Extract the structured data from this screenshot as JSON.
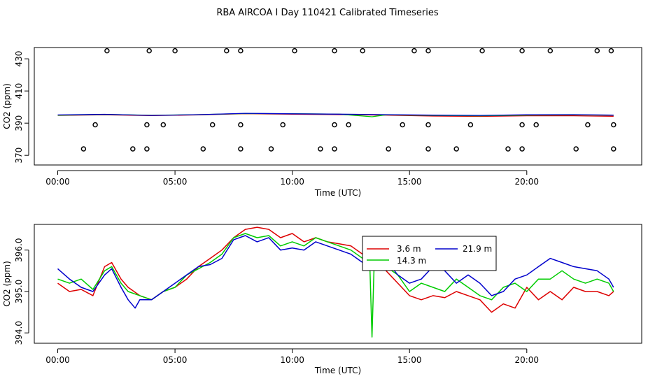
{
  "title": "RBA AIRCOA I  Day 110421  Calibrated Timeseries",
  "chart_data": [
    {
      "type": "line",
      "panel": "top",
      "xlabel": "Time (UTC)",
      "ylabel": "CO2 (ppm)",
      "xlim": [
        -1.0,
        24.9
      ],
      "ylim": [
        364,
        437
      ],
      "x_ticks": [
        0,
        5,
        10,
        15,
        20
      ],
      "x_tick_labels": [
        "00:00",
        "05:00",
        "10:00",
        "15:00",
        "20:00"
      ],
      "y_ticks": [
        370,
        390,
        410,
        430
      ],
      "y_tick_labels": [
        "370",
        "390",
        "410",
        "430"
      ],
      "colors": {
        "red": "#dd0000",
        "green": "#00cc00",
        "blue": "#0000cc"
      },
      "lines": [
        {
          "color": "red",
          "x": [
            0,
            2,
            4,
            6,
            8,
            10,
            12,
            14,
            16,
            18,
            20,
            22,
            23.7
          ],
          "y": [
            394.8,
            395.2,
            394.7,
            395.1,
            395.9,
            395.6,
            395.3,
            395.0,
            394.4,
            394.2,
            394.6,
            394.6,
            394.3
          ]
        },
        {
          "color": "green",
          "x": [
            0,
            2,
            4,
            6,
            8,
            10,
            12,
            13.4,
            14,
            16,
            18,
            20,
            22,
            23.7
          ],
          "y": [
            394.9,
            395.4,
            394.9,
            395.3,
            396.0,
            395.9,
            395.6,
            394.0,
            395.2,
            394.8,
            394.6,
            395.0,
            395.1,
            395.0
          ]
        },
        {
          "color": "blue",
          "x": [
            0,
            2,
            4,
            6,
            8,
            10,
            12,
            14,
            16,
            18,
            20,
            22,
            23.7
          ],
          "y": [
            395.1,
            395.5,
            394.8,
            395.3,
            396.1,
            395.8,
            395.6,
            395.3,
            395.0,
            394.8,
            395.2,
            395.3,
            395.0
          ]
        }
      ],
      "markers": {
        "high": {
          "y": 435,
          "x": [
            2.1,
            3.9,
            5.0,
            7.2,
            7.8,
            10.1,
            11.8,
            13.0,
            15.2,
            15.8,
            18.1,
            19.8,
            21.0,
            23.0,
            23.6
          ]
        },
        "mid": {
          "y": 389,
          "x": [
            1.6,
            3.8,
            4.5,
            6.6,
            7.8,
            9.6,
            11.8,
            12.4,
            14.7,
            15.8,
            17.6,
            19.8,
            20.4,
            22.6,
            23.7
          ]
        },
        "low": {
          "y": 374,
          "x": [
            1.1,
            3.2,
            3.8,
            6.2,
            7.8,
            9.1,
            11.2,
            11.8,
            14.1,
            15.8,
            17.0,
            19.2,
            19.8,
            22.1,
            23.7
          ]
        }
      }
    },
    {
      "type": "line",
      "panel": "bottom",
      "xlabel": "Time (UTC)",
      "ylabel": "CO2 (ppm)",
      "xlim": [
        -1.0,
        24.9
      ],
      "ylim": [
        393.75,
        396.62
      ],
      "x_ticks": [
        0,
        5,
        10,
        15,
        20
      ],
      "x_tick_labels": [
        "00:00",
        "05:00",
        "10:00",
        "15:00",
        "20:00"
      ],
      "y_ticks": [
        394.0,
        395.0,
        396.0
      ],
      "y_tick_labels": [
        "394.0",
        "395.0",
        "396.0"
      ],
      "legend": {
        "position": "top-right",
        "entries": [
          {
            "label": "3.6 m",
            "color": "red"
          },
          {
            "label": "21.9 m",
            "color": "blue"
          },
          {
            "label": "14.3 m",
            "color": "green"
          }
        ]
      },
      "series": [
        {
          "color": "red",
          "x": [
            0.0,
            0.5,
            1.0,
            1.5,
            2.0,
            2.3,
            2.7,
            3.0,
            3.5,
            4.0,
            4.5,
            5.0,
            5.5,
            6.0,
            6.5,
            7.0,
            7.5,
            8.0,
            8.5,
            9.0,
            9.5,
            10.0,
            10.5,
            11.0,
            11.5,
            12.0,
            12.5,
            13.0,
            13.5,
            14.0,
            14.5,
            15.0,
            15.5,
            16.0,
            16.5,
            17.0,
            17.5,
            18.0,
            18.5,
            19.0,
            19.5,
            20.0,
            20.5,
            21.0,
            21.5,
            22.0,
            22.5,
            23.0,
            23.5,
            23.7
          ],
          "y": [
            395.2,
            395.0,
            395.05,
            394.9,
            395.6,
            395.7,
            395.3,
            395.1,
            394.9,
            394.8,
            395.0,
            395.1,
            395.3,
            395.6,
            395.8,
            396.0,
            396.3,
            396.5,
            396.55,
            396.5,
            396.3,
            396.4,
            396.2,
            396.3,
            396.2,
            396.15,
            396.1,
            395.9,
            395.8,
            395.5,
            395.2,
            394.9,
            394.8,
            394.9,
            394.85,
            395.0,
            394.9,
            394.8,
            394.5,
            394.7,
            394.6,
            395.1,
            394.8,
            395.0,
            394.8,
            395.1,
            395.0,
            395.0,
            394.9,
            395.0
          ]
        },
        {
          "color": "green",
          "x": [
            0.0,
            0.5,
            1.0,
            1.5,
            2.0,
            2.3,
            2.7,
            3.0,
            3.5,
            4.0,
            4.5,
            5.0,
            5.5,
            6.0,
            6.5,
            7.0,
            7.5,
            8.0,
            8.5,
            9.0,
            9.5,
            10.0,
            10.5,
            11.0,
            11.5,
            12.0,
            12.5,
            13.0,
            13.3,
            13.4,
            13.5,
            14.0,
            14.5,
            15.0,
            15.5,
            16.0,
            16.5,
            17.0,
            17.5,
            18.0,
            18.5,
            19.0,
            19.5,
            20.0,
            20.5,
            21.0,
            21.5,
            22.0,
            22.5,
            23.0,
            23.5,
            23.7
          ],
          "y": [
            395.3,
            395.2,
            395.3,
            395.05,
            395.5,
            395.6,
            395.2,
            395.0,
            394.9,
            394.8,
            395.0,
            395.1,
            395.4,
            395.55,
            395.7,
            395.9,
            396.3,
            396.4,
            396.3,
            396.35,
            396.1,
            396.2,
            396.1,
            396.3,
            396.2,
            396.1,
            396.0,
            395.8,
            395.8,
            393.9,
            395.8,
            395.6,
            395.4,
            395.0,
            395.2,
            395.1,
            395.0,
            395.3,
            395.1,
            394.9,
            394.8,
            395.1,
            395.2,
            395.0,
            395.3,
            395.3,
            395.5,
            395.3,
            395.2,
            395.3,
            395.2,
            395.0
          ]
        },
        {
          "color": "blue",
          "x": [
            0.0,
            0.5,
            1.0,
            1.5,
            2.0,
            2.3,
            2.7,
            3.0,
            3.3,
            3.5,
            4.0,
            4.5,
            5.0,
            5.5,
            6.0,
            6.5,
            7.0,
            7.5,
            8.0,
            8.5,
            9.0,
            9.5,
            10.0,
            10.5,
            11.0,
            11.5,
            12.0,
            12.5,
            13.0,
            13.5,
            14.0,
            14.5,
            15.0,
            15.5,
            16.0,
            16.5,
            17.0,
            17.5,
            18.0,
            18.5,
            19.0,
            19.5,
            20.0,
            20.5,
            21.0,
            21.5,
            22.0,
            22.5,
            23.0,
            23.5,
            23.7
          ],
          "y": [
            395.55,
            395.3,
            395.1,
            395.0,
            395.4,
            395.55,
            395.1,
            394.8,
            394.6,
            394.8,
            394.8,
            395.0,
            395.2,
            395.4,
            395.6,
            395.65,
            395.8,
            396.25,
            396.35,
            396.2,
            396.3,
            396.0,
            396.05,
            396.0,
            396.2,
            396.1,
            396.0,
            395.9,
            395.7,
            395.7,
            395.75,
            395.4,
            395.2,
            395.3,
            395.6,
            395.5,
            395.2,
            395.4,
            395.2,
            394.9,
            395.0,
            395.3,
            395.4,
            395.6,
            395.8,
            395.7,
            395.6,
            395.55,
            395.5,
            395.3,
            395.1
          ]
        }
      ]
    }
  ]
}
